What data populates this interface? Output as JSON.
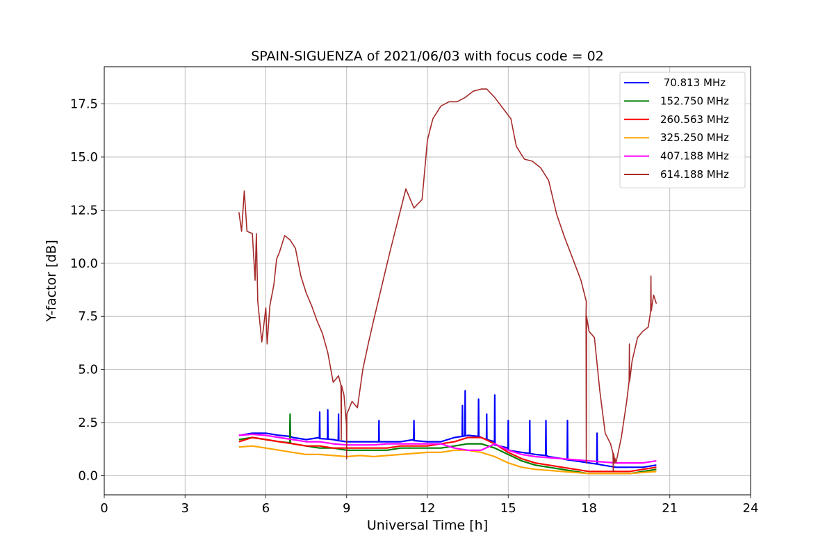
{
  "chart_data": {
    "type": "line",
    "title": "SPAIN-SIGUENZA of 2021/06/03 with focus code = 02",
    "xlabel": "Universal Time [h]",
    "ylabel": "Y-factor [dB]",
    "xlim": [
      0,
      24
    ],
    "ylim": [
      -0.9,
      19.25
    ],
    "xticks": [
      0,
      3,
      6,
      9,
      12,
      15,
      18,
      21,
      24
    ],
    "xtick_labels": [
      "0",
      "3",
      "6",
      "9",
      "12",
      "15",
      "18",
      "21",
      "24"
    ],
    "yticks": [
      0.0,
      2.5,
      5.0,
      7.5,
      10.0,
      12.5,
      15.0,
      17.5
    ],
    "ytick_labels": [
      "0.0",
      "2.5",
      "5.0",
      "7.5",
      "10.0",
      "12.5",
      "15.0",
      "17.5"
    ],
    "grid": true,
    "legend_position": "upper right",
    "series": [
      {
        "name": " 70.813 MHz",
        "color": "#0000ff",
        "x": [
          5.0,
          5.5,
          6.0,
          6.5,
          7.0,
          7.5,
          8.0,
          8.5,
          9.0,
          9.5,
          10.0,
          10.5,
          11.0,
          11.5,
          12.0,
          12.5,
          13.0,
          13.5,
          14.0,
          14.5,
          15.0,
          15.5,
          16.0,
          16.5,
          17.0,
          17.5,
          18.0,
          18.5,
          19.0,
          19.5,
          20.0,
          20.5
        ],
        "y": [
          1.9,
          2.0,
          2.0,
          1.9,
          1.8,
          1.7,
          1.8,
          1.7,
          1.6,
          1.6,
          1.6,
          1.6,
          1.6,
          1.7,
          1.6,
          1.6,
          1.8,
          1.9,
          1.8,
          1.6,
          1.3,
          1.1,
          1.0,
          0.9,
          0.8,
          0.7,
          0.6,
          0.5,
          0.4,
          0.4,
          0.4,
          0.5
        ],
        "spikes": [
          [
            6.9,
            2.6
          ],
          [
            8.0,
            3.0
          ],
          [
            8.3,
            3.1
          ],
          [
            8.7,
            2.9
          ],
          [
            10.2,
            2.6
          ],
          [
            11.5,
            2.6
          ],
          [
            13.3,
            3.3
          ],
          [
            13.4,
            4.0
          ],
          [
            13.9,
            3.6
          ],
          [
            14.2,
            2.9
          ],
          [
            14.5,
            3.8
          ],
          [
            15.0,
            2.6
          ],
          [
            15.8,
            2.6
          ],
          [
            16.4,
            2.6
          ],
          [
            17.2,
            2.6
          ],
          [
            18.3,
            2.0
          ]
        ]
      },
      {
        "name": "152.750 MHz",
        "color": "#008000",
        "x": [
          5.0,
          5.5,
          6.0,
          6.5,
          7.0,
          7.5,
          8.0,
          8.5,
          9.0,
          9.5,
          10.0,
          10.5,
          11.0,
          11.5,
          12.0,
          12.5,
          13.0,
          13.5,
          14.0,
          14.5,
          15.0,
          15.5,
          16.0,
          16.5,
          17.0,
          17.5,
          18.0,
          18.5,
          19.0,
          19.5,
          20.0,
          20.5
        ],
        "y": [
          1.7,
          1.8,
          1.7,
          1.6,
          1.5,
          1.4,
          1.3,
          1.3,
          1.2,
          1.2,
          1.2,
          1.2,
          1.3,
          1.3,
          1.3,
          1.3,
          1.4,
          1.5,
          1.5,
          1.3,
          1.0,
          0.7,
          0.5,
          0.4,
          0.3,
          0.2,
          0.1,
          0.1,
          0.1,
          0.1,
          0.2,
          0.3
        ],
        "spikes": [
          [
            6.9,
            2.9
          ]
        ]
      },
      {
        "name": "260.563 MHz",
        "color": "#ff0000",
        "x": [
          5.0,
          5.5,
          6.0,
          6.5,
          7.0,
          7.5,
          8.0,
          8.5,
          9.0,
          9.5,
          10.0,
          10.5,
          11.0,
          11.5,
          12.0,
          12.5,
          13.0,
          13.5,
          14.0,
          14.5,
          15.0,
          15.5,
          16.0,
          16.5,
          17.0,
          17.5,
          18.0,
          18.5,
          19.0,
          19.5,
          20.0,
          20.5
        ],
        "y": [
          1.6,
          1.8,
          1.7,
          1.6,
          1.5,
          1.4,
          1.4,
          1.3,
          1.3,
          1.3,
          1.3,
          1.3,
          1.4,
          1.4,
          1.4,
          1.5,
          1.6,
          1.8,
          1.8,
          1.5,
          1.1,
          0.8,
          0.6,
          0.5,
          0.4,
          0.3,
          0.2,
          0.2,
          0.2,
          0.2,
          0.3,
          0.4
        ],
        "spikes": []
      },
      {
        "name": "325.250 MHz",
        "color": "#ffa500",
        "x": [
          5.0,
          5.5,
          6.0,
          6.5,
          7.0,
          7.5,
          8.0,
          8.5,
          9.0,
          9.5,
          10.0,
          10.5,
          11.0,
          11.5,
          12.0,
          12.5,
          13.0,
          13.5,
          14.0,
          14.5,
          15.0,
          15.5,
          16.0,
          16.5,
          17.0,
          17.5,
          18.0,
          18.5,
          19.0,
          19.5,
          20.0,
          20.5
        ],
        "y": [
          1.35,
          1.4,
          1.3,
          1.2,
          1.1,
          1.0,
          1.0,
          0.95,
          0.9,
          0.95,
          0.9,
          0.95,
          1.0,
          1.05,
          1.1,
          1.1,
          1.2,
          1.2,
          1.1,
          0.9,
          0.6,
          0.4,
          0.3,
          0.25,
          0.2,
          0.15,
          0.1,
          0.1,
          0.1,
          0.1,
          0.15,
          0.2
        ],
        "spikes": []
      },
      {
        "name": "407.188 MHz",
        "color": "#ff00ff",
        "x": [
          5.0,
          5.5,
          6.0,
          6.5,
          7.0,
          7.5,
          8.0,
          8.5,
          9.0,
          9.5,
          10.0,
          10.5,
          11.0,
          11.5,
          12.0,
          12.5,
          13.0,
          13.5,
          14.0,
          14.5,
          15.0,
          15.5,
          16.0,
          16.5,
          17.0,
          17.5,
          18.0,
          18.5,
          19.0,
          19.5,
          20.0,
          20.5
        ],
        "y": [
          1.9,
          1.95,
          1.9,
          1.8,
          1.7,
          1.6,
          1.6,
          1.5,
          1.45,
          1.45,
          1.45,
          1.5,
          1.5,
          1.5,
          1.5,
          1.5,
          1.3,
          1.2,
          1.2,
          1.5,
          1.2,
          1.0,
          0.9,
          0.85,
          0.8,
          0.75,
          0.7,
          0.65,
          0.6,
          0.6,
          0.6,
          0.7
        ],
        "spikes": []
      },
      {
        "name": "614.188 MHz",
        "color": "#a52a2a",
        "x": [
          5.0,
          5.1,
          5.2,
          5.3,
          5.5,
          5.6,
          5.65,
          5.7,
          5.85,
          6.0,
          6.05,
          6.15,
          6.3,
          6.4,
          6.5,
          6.7,
          6.9,
          7.1,
          7.3,
          7.5,
          7.7,
          7.9,
          8.1,
          8.3,
          8.5,
          8.7,
          8.9,
          9.0,
          9.2,
          9.4,
          9.6,
          9.8,
          10.0,
          10.3,
          10.6,
          10.9,
          11.2,
          11.5,
          11.8,
          12.0,
          12.2,
          12.5,
          12.8,
          13.1,
          13.4,
          13.7,
          14.0,
          14.2,
          14.5,
          14.8,
          15.1,
          15.3,
          15.6,
          15.9,
          16.2,
          16.5,
          16.8,
          17.1,
          17.4,
          17.7,
          17.9,
          18.0,
          18.2,
          18.4,
          18.6,
          18.8,
          19.0,
          19.2,
          19.4,
          19.6,
          19.8,
          20.0,
          20.2,
          20.4,
          20.5
        ],
        "y": [
          12.4,
          11.5,
          13.4,
          11.5,
          11.4,
          9.2,
          11.4,
          8.2,
          6.3,
          7.9,
          6.2,
          8.0,
          9.0,
          10.2,
          10.5,
          11.3,
          11.1,
          10.7,
          9.4,
          8.6,
          8.0,
          7.3,
          6.7,
          5.8,
          4.4,
          4.7,
          3.8,
          2.3,
          3.5,
          3.2,
          5.0,
          6.2,
          7.3,
          8.9,
          10.5,
          12.0,
          13.5,
          12.6,
          13.0,
          15.8,
          16.8,
          17.4,
          17.6,
          17.6,
          17.8,
          18.1,
          18.2,
          18.2,
          17.8,
          17.3,
          16.8,
          15.5,
          14.9,
          14.8,
          14.5,
          13.9,
          12.3,
          11.2,
          10.2,
          9.2,
          8.2,
          6.8,
          6.5,
          4.0,
          2.0,
          1.5,
          0.6,
          1.8,
          3.5,
          5.4,
          6.5,
          6.8,
          7.0,
          8.5,
          8.1
        ],
        "spikes": [
          [
            8.8,
            1.7
          ],
          [
            9.0,
            0.8
          ],
          [
            17.9,
            0.6
          ],
          [
            18.9,
            0.2
          ],
          [
            18.95,
            0.6
          ],
          [
            19.5,
            6.2
          ],
          [
            20.3,
            9.4
          ]
        ]
      }
    ]
  }
}
